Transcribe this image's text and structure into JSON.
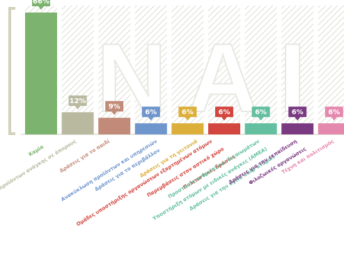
{
  "chart_data": {
    "type": "bar",
    "background_word": "ΝΑΙ",
    "title": "",
    "xlabel": "",
    "ylabel": "",
    "ylim": [
      0,
      70
    ],
    "grid": false,
    "legend": "none",
    "categories": [
      "Καμία",
      "Διανομή βασικών προϊόντων ανάγκης σε άπορους",
      "Δράσεις για το παιδί",
      "Ανακύκλωση προϊόντων και υπηρεσιών",
      "Δράσεις για το περιβάλλον",
      "Δράσεις για τη γειτονιά",
      "Ομάδες υποστήριξης οργανώσεων εξαρτημένων ατόμων",
      "Παρεμβάσεις στον αστικό χώρο",
      "Πολιτιστικές δράσεις",
      "Προστασία ανθρωπίνων δικαιωμάτων",
      "Υποστήριξη ατόμων με ειδικές ανάγκες (ΑΜΕΑ)",
      "Δράσεις για την υγεία υπέρ ατόμων",
      "Δράσεις για την εκπαίδευση",
      "Φιλοζωικές οργανώσεις",
      "Τέχνη και πολιτισμός"
    ],
    "bars": [
      {
        "value": 66,
        "label": "66%",
        "color": "#7cb36e",
        "categories": [
          0
        ]
      },
      {
        "value": 12,
        "label": "12%",
        "color": "#b9b9a0",
        "categories": [
          1
        ]
      },
      {
        "value": 9,
        "label": "9%",
        "color": "#c28b79",
        "categories": [
          2
        ]
      },
      {
        "value": 6,
        "label": "6%",
        "color": "#6f95cd",
        "categories": [
          3,
          4
        ]
      },
      {
        "value": 6,
        "label": "6%",
        "color": "#dcae3a",
        "categories": [
          5
        ]
      },
      {
        "value": 6,
        "label": "6%",
        "color": "#d2463f",
        "categories": [
          6,
          7,
          8
        ]
      },
      {
        "value": 6,
        "label": "6%",
        "color": "#63bfa0",
        "categories": [
          9,
          10,
          11
        ]
      },
      {
        "value": 6,
        "label": "6%",
        "color": "#7a3a82",
        "categories": [
          12,
          13
        ]
      },
      {
        "value": 6,
        "label": "6%",
        "color": "#e488ad",
        "categories": [
          14
        ]
      }
    ],
    "label_colors": [
      "#7cb36e",
      "#b9b9a0",
      "#c28b79",
      "#6f95cd",
      "#6f95cd",
      "#dcae3a",
      "#d2463f",
      "#d2463f",
      "#d2463f",
      "#63bfa0",
      "#63bfa0",
      "#63bfa0",
      "#7a3a82",
      "#7a3a82",
      "#e488ad"
    ],
    "colors": {
      "hatch": "#dcdcd3",
      "bracket": "#d3d1ba",
      "baseline": "#e3e4dc"
    }
  }
}
